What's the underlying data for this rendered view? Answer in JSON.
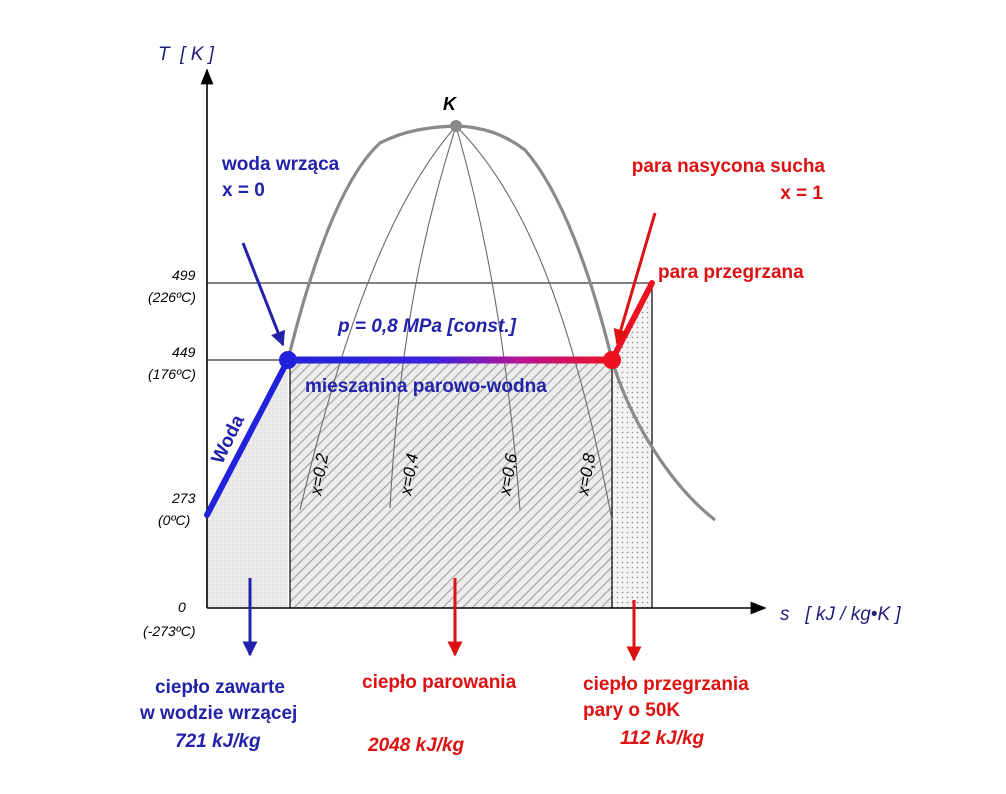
{
  "axes": {
    "y_label": "T  [ K ]",
    "x_label": "s   [ kJ / kg•K ]",
    "y_ticks": [
      {
        "value": "499",
        "sub": "(226ºC)"
      },
      {
        "value": "449",
        "sub": "(176ºC)"
      },
      {
        "value": "273",
        "sub": "(0ºC)"
      },
      {
        "value": "0",
        "sub": "(-273ºC)"
      }
    ]
  },
  "critical_point": "K",
  "labels": {
    "boiling_water_1": "woda wrząca",
    "boiling_water_2": "x = 0",
    "saturated_vapor_1": "para nasycona sucha",
    "saturated_vapor_2": "x = 1",
    "superheated": "para przegrzana",
    "pressure": "p = 0,8 MPa [const.]",
    "mixture": "mieszanina parowo-wodna",
    "water": "Woda"
  },
  "quality_lines": [
    "x=0,2",
    "x=0,4",
    "x=0,6",
    "x=0,8"
  ],
  "heat": {
    "water_1": "ciepło zawarte",
    "water_2": "w wodzie wrzącej",
    "water_value": "721 kJ/kg",
    "vaporization": "ciepło parowania",
    "vaporization_value": "2048 kJ/kg",
    "superheat_1": "ciepło przegrzania",
    "superheat_2": "pary o 50K",
    "superheat_value": "112 kJ/kg"
  },
  "colors": {
    "blue": "#2222aa",
    "red": "#dd1111",
    "dome": "#8a8a8a",
    "hatch": "#bdbdbd"
  }
}
